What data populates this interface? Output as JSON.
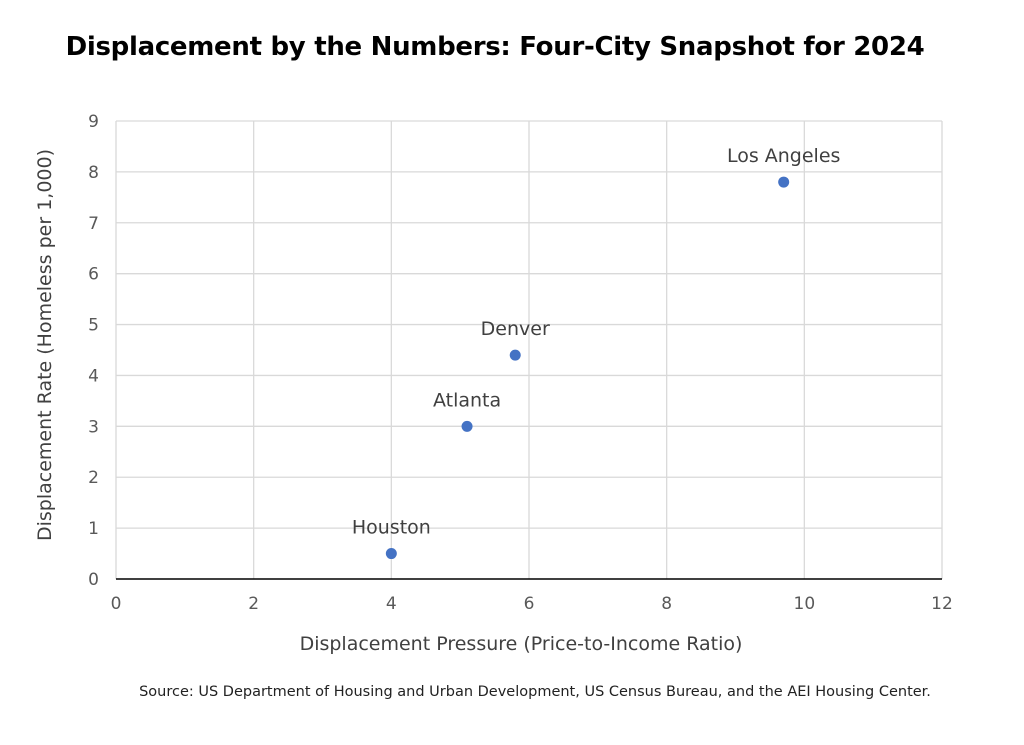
{
  "chart_data": {
    "type": "scatter",
    "title": "Displacement by the Numbers: Four-City Snapshot for 2024",
    "xlabel": "Displacement Pressure  (Price-to-Income Ratio)",
    "ylabel": "Displacement Rate (Homeless per 1,000)",
    "xlim": [
      0,
      12
    ],
    "ylim": [
      0,
      9
    ],
    "x_ticks": [
      "0",
      "2",
      "4",
      "6",
      "8",
      "10",
      "12"
    ],
    "y_ticks": [
      "0",
      "1",
      "2",
      "3",
      "4",
      "5",
      "6",
      "7",
      "8",
      "9"
    ],
    "grid": true,
    "legend": "none",
    "marker_color": "#4472C4",
    "points": [
      {
        "label": "Houston",
        "x": 4.0,
        "y": 0.5
      },
      {
        "label": "Atlanta",
        "x": 5.1,
        "y": 3.0
      },
      {
        "label": "Denver",
        "x": 5.8,
        "y": 4.4
      },
      {
        "label": "Los Angeles",
        "x": 9.7,
        "y": 7.8
      }
    ]
  },
  "source": "Source: US Department of Housing and Urban Development, US Census Bureau, and the AEI Housing Center."
}
